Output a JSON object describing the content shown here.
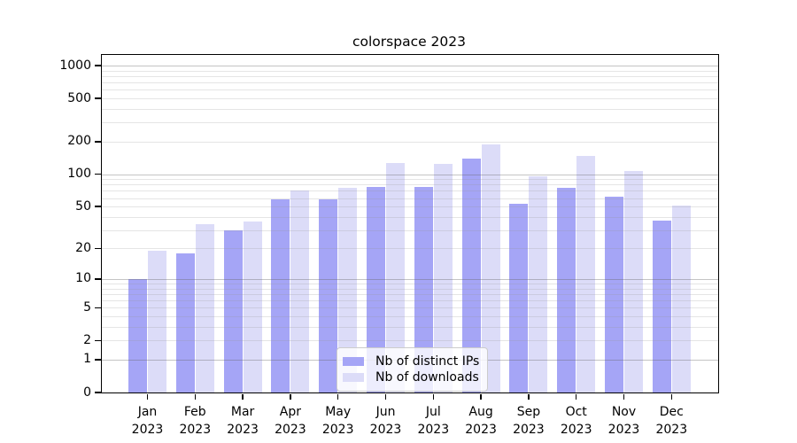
{
  "chart_data": {
    "type": "bar",
    "title": "colorspace 2023",
    "year": "2023",
    "months": [
      "Jan",
      "Feb",
      "Mar",
      "Apr",
      "May",
      "Jun",
      "Jul",
      "Aug",
      "Sep",
      "Oct",
      "Nov",
      "Dec"
    ],
    "series": [
      {
        "name": "Nb of distinct IPs",
        "color": "#a5a5f6",
        "values": [
          10,
          18,
          30,
          58,
          58,
          76,
          76,
          140,
          53,
          74,
          62,
          37
        ]
      },
      {
        "name": "Nb of downloads",
        "color": "#dcdcf8",
        "values": [
          19,
          34,
          36,
          70,
          74,
          127,
          124,
          188,
          96,
          148,
          108,
          51
        ]
      }
    ],
    "yscale": "log1p",
    "yticks": [
      0,
      1,
      2,
      5,
      10,
      20,
      50,
      100,
      200,
      500,
      1000
    ],
    "major_grid_at": [
      1,
      10,
      100,
      1000
    ],
    "ylim": [
      0,
      1255
    ],
    "grid": "on",
    "legend_position": "lower center"
  }
}
